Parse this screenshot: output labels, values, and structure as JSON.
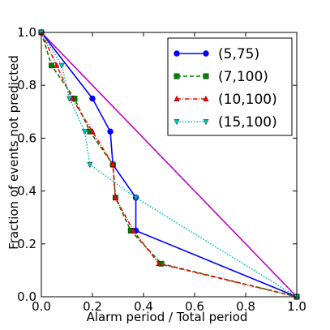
{
  "chart_data": {
    "type": "line",
    "title": "",
    "xlabel": "Alarm period / Total period",
    "ylabel": "Fraction of events not predicted",
    "xlim": [
      0.0,
      1.0
    ],
    "ylim": [
      0.0,
      1.0
    ],
    "xticks": [
      "0.0",
      "0.2",
      "0.4",
      "0.6",
      "0.8",
      "1.0"
    ],
    "yticks": [
      "0.0",
      "0.2",
      "0.4",
      "0.6",
      "0.8",
      "1.0"
    ],
    "grid": false,
    "legend_position": "top-right",
    "reference_line": {
      "color": "#bf00bf",
      "x": [
        0.0,
        1.0
      ],
      "y": [
        1.0,
        0.0
      ]
    },
    "series": [
      {
        "name": "(5,75)",
        "color": "#0000ff",
        "style": "solid",
        "marker": "circle",
        "x": [
          0.0,
          0.2,
          0.27,
          0.28,
          0.37,
          0.37,
          1.0
        ],
        "y": [
          1.0,
          0.75,
          0.625,
          0.5,
          0.375,
          0.25,
          0.0
        ]
      },
      {
        "name": "(7,100)",
        "color": "#007f00",
        "style": "dashed",
        "marker": "square",
        "x": [
          0.0,
          0.04,
          0.13,
          0.19,
          0.28,
          0.29,
          0.35,
          0.47,
          1.0
        ],
        "y": [
          1.0,
          0.875,
          0.75,
          0.625,
          0.5,
          0.375,
          0.25,
          0.125,
          0.0
        ]
      },
      {
        "name": "(10,100)",
        "color": "#ff0000",
        "style": "dashdot",
        "marker": "triangle-up",
        "x": [
          0.0,
          0.06,
          0.12,
          0.2,
          0.28,
          0.29,
          0.36,
          0.46,
          1.0
        ],
        "y": [
          1.0,
          0.875,
          0.75,
          0.625,
          0.5,
          0.375,
          0.25,
          0.125,
          0.0
        ]
      },
      {
        "name": "(15,100)",
        "color": "#00bfbf",
        "style": "dotted",
        "marker": "triangle-down",
        "x": [
          0.0,
          0.08,
          0.11,
          0.17,
          0.19,
          0.37,
          1.0
        ],
        "y": [
          1.0,
          0.875,
          0.75,
          0.625,
          0.5,
          0.375,
          0.0
        ]
      }
    ]
  }
}
